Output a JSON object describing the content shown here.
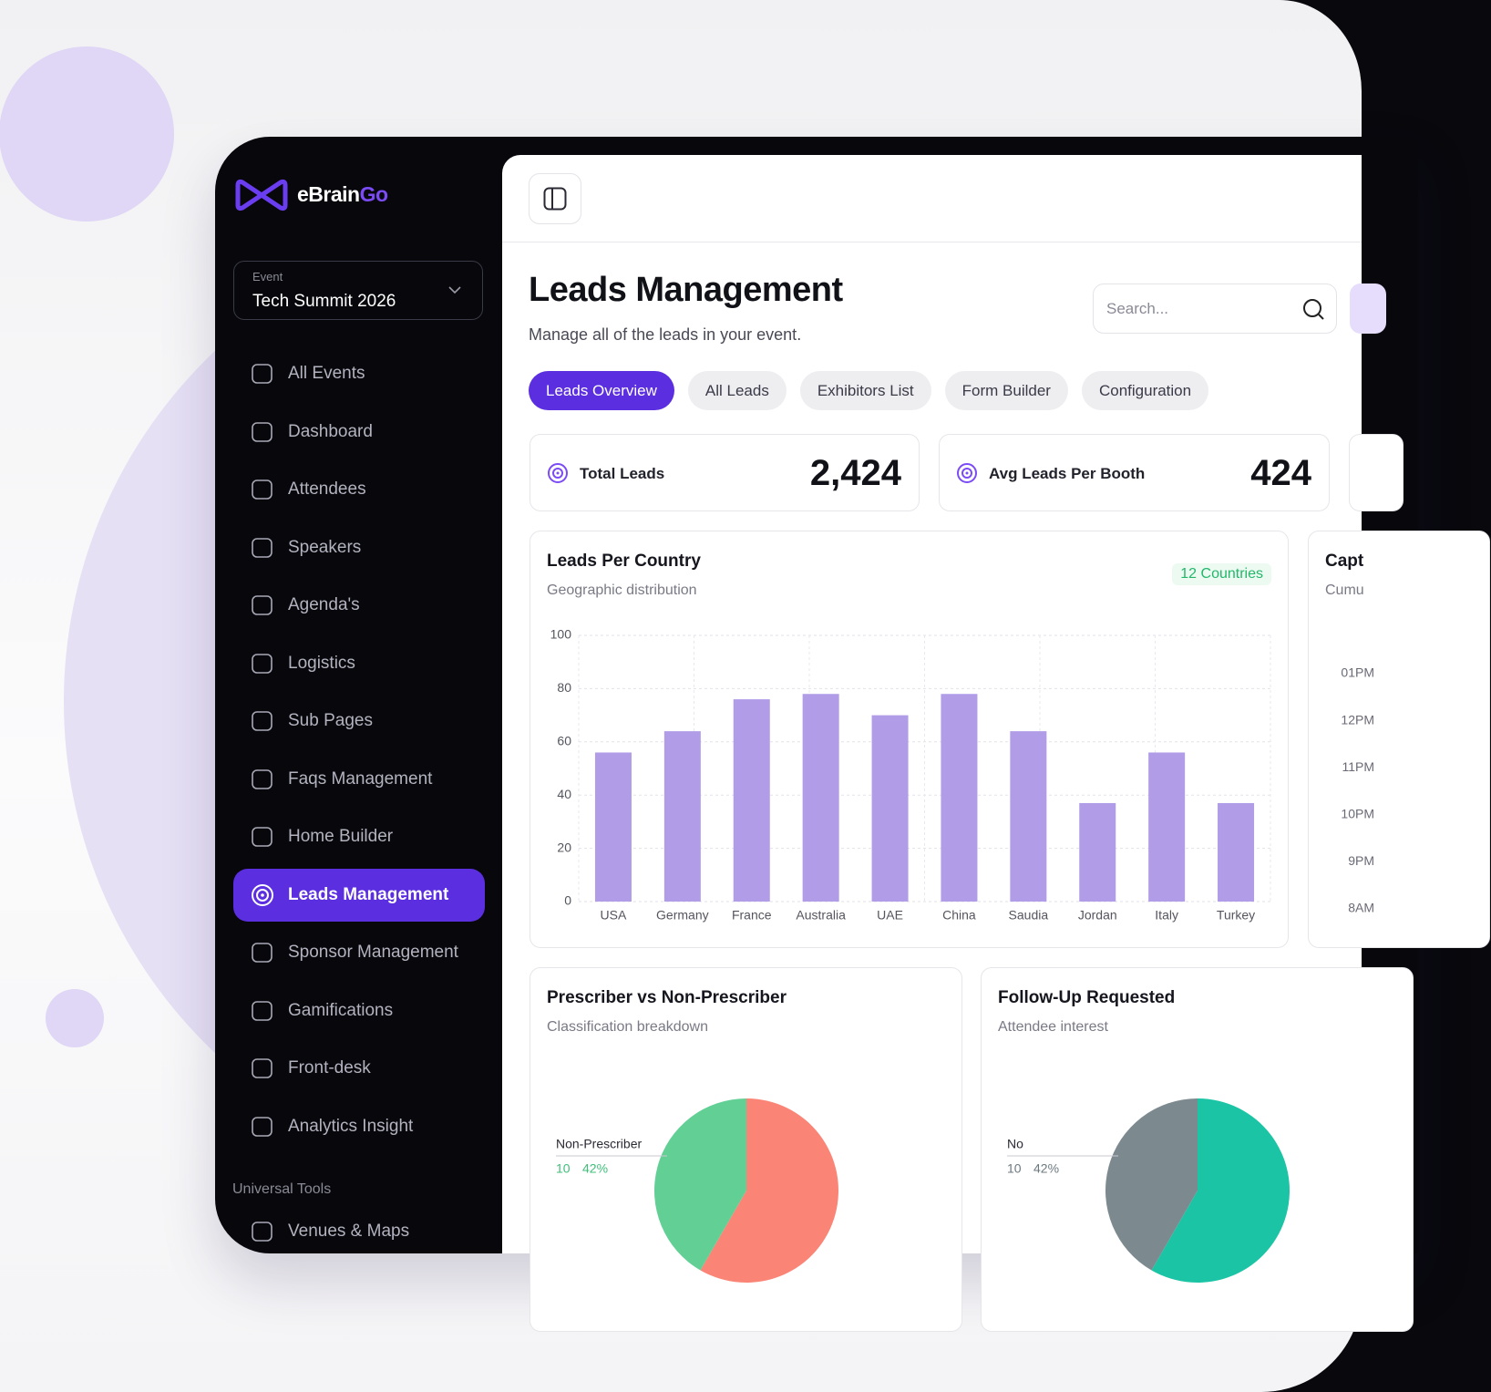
{
  "sidebar": {
    "logo": {
      "brand": "eBrain",
      "accent": "Go"
    },
    "event": {
      "label": "Event",
      "name": "Tech Summit 2026"
    },
    "nav": [
      {
        "label": "All Events",
        "active": false
      },
      {
        "label": "Dashboard",
        "active": false
      },
      {
        "label": "Attendees",
        "active": false
      },
      {
        "label": "Speakers",
        "active": false
      },
      {
        "label": "Agenda's",
        "active": false
      },
      {
        "label": "Logistics",
        "active": false
      },
      {
        "label": "Sub Pages",
        "active": false
      },
      {
        "label": "Faqs Management",
        "active": false
      },
      {
        "label": "Home Builder",
        "active": false
      },
      {
        "label": "Leads Management",
        "active": true
      },
      {
        "label": "Sponsor Management",
        "active": false
      },
      {
        "label": "Gamifications",
        "active": false
      },
      {
        "label": "Front-desk",
        "active": false
      },
      {
        "label": "Analytics Insight",
        "active": false
      }
    ],
    "tools_heading": "Universal Tools",
    "tools": [
      "Venues & Maps"
    ]
  },
  "header": {
    "title": "Leads Management",
    "subtitle": "Manage all of the leads in your event.",
    "search_placeholder": "Search..."
  },
  "tabs": [
    {
      "label": "Leads Overview",
      "active": true
    },
    {
      "label": "All Leads",
      "active": false
    },
    {
      "label": "Exhibitors List",
      "active": false
    },
    {
      "label": "Form Builder",
      "active": false
    },
    {
      "label": "Configuration",
      "active": false
    }
  ],
  "stats": [
    {
      "label": "Total Leads",
      "value": "2,424"
    },
    {
      "label": "Avg Leads Per Booth",
      "value": "424"
    }
  ],
  "card": {
    "title": "Capt",
    "subtitle": "Cumu",
    "labels": [
      "01PM",
      "12PM",
      "11PM",
      "10PM",
      "9PM",
      "8AM"
    ]
  },
  "chart_data": [
    {
      "type": "bar",
      "title": "Leads Per Country",
      "subtitle": "Geographic distribution",
      "badge": "12 Countries",
      "categories": [
        "USA",
        "Germany",
        "France",
        "Australia",
        "UAE",
        "China",
        "Saudia",
        "Jordan",
        "Italy",
        "Turkey"
      ],
      "values": [
        56,
        64,
        76,
        78,
        70,
        78,
        64,
        37,
        56,
        37
      ],
      "color": "#b19ce8",
      "ylim": [
        0,
        100
      ],
      "yticks": [
        0,
        20,
        40,
        60,
        80,
        100
      ],
      "grid": true
    },
    {
      "type": "pie",
      "title": "Prescriber vs Non-Prescriber",
      "subtitle": "Classification breakdown",
      "categories": [
        "Non-Prescriber",
        null
      ],
      "values": [
        10,
        14
      ],
      "percent_labels": [
        "42%",
        null
      ],
      "colors": [
        "#62cf95",
        "#fa8576"
      ],
      "label_color": "#3fbf7a"
    },
    {
      "type": "pie",
      "title": "Follow-Up Requested",
      "subtitle": "Attendee interest",
      "categories": [
        "No",
        null
      ],
      "values": [
        10,
        14
      ],
      "percent_labels": [
        "42%",
        null
      ],
      "colors": [
        "#7c8a8f",
        "#1bc4a5"
      ],
      "label_color": "#6c7a80"
    }
  ]
}
